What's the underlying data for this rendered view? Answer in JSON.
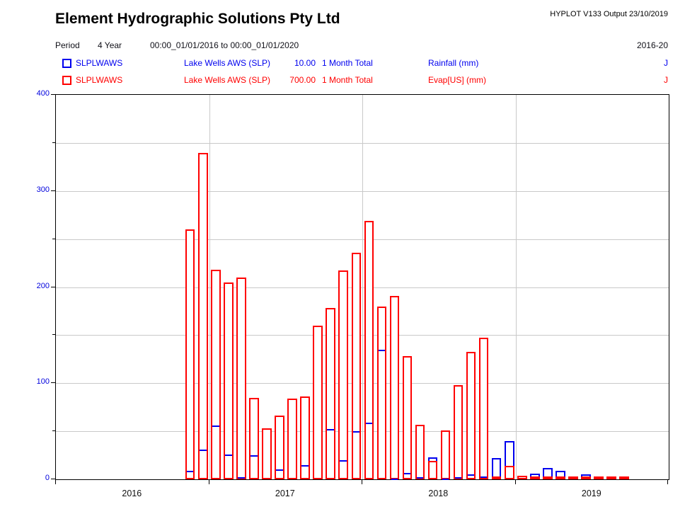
{
  "header": {
    "title": "Element Hydrographic Solutions Pty Ltd",
    "app_version": "HYPLOT V133  Output 23/10/2019",
    "period_label": "Period",
    "period_value": "4 Year",
    "period_range": "00:00_01/01/2016 to 00:00_01/01/2020",
    "period_span": "2016-20"
  },
  "legend": [
    {
      "station": "SLPLWAWS",
      "name": "Lake Wells AWS (SLP)",
      "scale": "10.00",
      "interval": "1 Month Total",
      "parameter": "Rainfall (mm)",
      "quality": "J",
      "color": "#0000ee"
    },
    {
      "station": "SLPLWAWS",
      "name": "Lake Wells AWS (SLP)",
      "scale": "700.00",
      "interval": "1 Month Total",
      "parameter": "Evap[US] (mm)",
      "quality": "J",
      "color": "#ff0000"
    }
  ],
  "chart_data": {
    "type": "bar",
    "title": "Monthly Rainfall and Evaporation, Lake Wells AWS (SLP), 2016-2020",
    "xlabel": "",
    "ylabel": "",
    "ylim": [
      0,
      400
    ],
    "y_major_ticks": [
      0,
      100,
      200,
      300,
      400
    ],
    "y_minor_ticks": [
      50,
      150,
      250,
      350
    ],
    "grid": true,
    "legend_position": "top",
    "x_years": [
      "2016",
      "2017",
      "2018",
      "2019"
    ],
    "start_month": "2016-01",
    "months_per_year": 12,
    "series": [
      {
        "name": "Rainfall (mm)",
        "color": "#0000ee",
        "style": "outlined-bar",
        "values": [
          null,
          null,
          null,
          null,
          null,
          null,
          null,
          null,
          null,
          null,
          9,
          31,
          56,
          26,
          2,
          25,
          null,
          10,
          null,
          15,
          null,
          52,
          20,
          50,
          59,
          135,
          1,
          7,
          2,
          23,
          1,
          2,
          5,
          3,
          22,
          40,
          null,
          6,
          12,
          9,
          null,
          5,
          null,
          null,
          null,
          null,
          null,
          null
        ]
      },
      {
        "name": "Evap[US] (mm)",
        "color": "#ff0000",
        "style": "outlined-bar",
        "values": [
          null,
          null,
          null,
          null,
          null,
          null,
          null,
          null,
          null,
          null,
          260,
          340,
          218,
          205,
          210,
          85,
          53,
          66,
          84,
          86,
          160,
          178,
          217,
          236,
          269,
          180,
          191,
          128,
          57,
          19,
          51,
          98,
          133,
          147,
          2,
          14,
          4,
          2,
          2,
          2,
          2,
          2,
          2,
          2,
          2,
          null,
          null,
          null
        ]
      }
    ],
    "colors": {
      "rain": "#0000ee",
      "evap": "#ff0000",
      "grid": "#c9c9c9",
      "axis": "#000000",
      "y_labels": "#0000dd",
      "x_labels": "#111111"
    }
  }
}
